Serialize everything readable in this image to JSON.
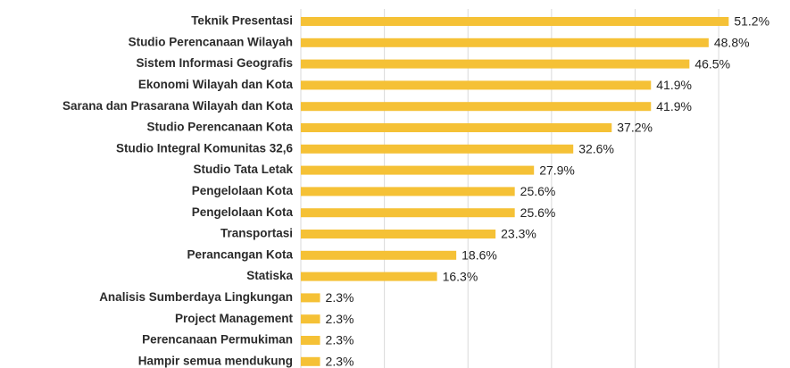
{
  "chart_data": {
    "type": "bar",
    "orientation": "horizontal",
    "categories": [
      "Teknik Presentasi",
      "Studio Perencanaan Wilayah",
      "Sistem Informasi Geografis",
      "Ekonomi Wilayah dan Kota",
      "Sarana dan Prasarana Wilayah dan Kota",
      "Studio Perencanaan Kota",
      "Studio Integral Komunitas 32,6",
      "Studio Tata Letak",
      "Pengelolaan Kota",
      "Pengelolaan Kota",
      "Transportasi",
      "Perancangan Kota",
      "Statiska",
      "Analisis Sumberdaya Lingkungan",
      "Project Management",
      "Perencanaan Permukiman",
      "Hampir semua mendukung"
    ],
    "values": [
      51.2,
      48.8,
      46.5,
      41.9,
      41.9,
      37.2,
      32.6,
      27.9,
      25.6,
      25.6,
      23.3,
      18.6,
      16.3,
      2.3,
      2.3,
      2.3,
      2.3
    ],
    "value_labels": [
      "51.2%",
      "48.8%",
      "46.5%",
      "41.9%",
      "41.9%",
      "37.2%",
      "32.6%",
      "27.9%",
      "25.6%",
      "25.6%",
      "23.3%",
      "18.6%",
      "16.3%",
      "2.3%",
      "2.3%",
      "2.3%",
      "2.3%"
    ],
    "color": "#f5c136",
    "xlim": [
      0,
      58
    ],
    "xticks": [
      0,
      10,
      20,
      30,
      40,
      50
    ],
    "grid": true
  }
}
